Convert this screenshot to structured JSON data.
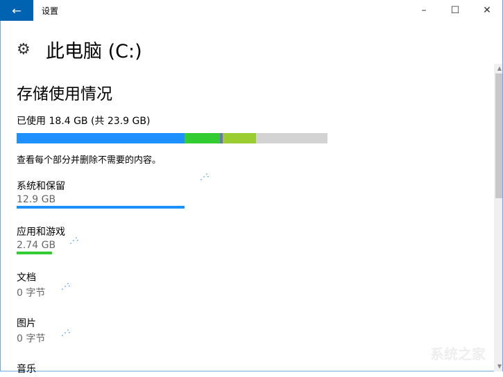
{
  "window": {
    "title": "设置",
    "back_icon": "arrow-left-icon",
    "minimize": "–",
    "maximize": "☐",
    "close": "✕"
  },
  "page": {
    "title": "此电脑 (C:)",
    "icon": "gear-icon"
  },
  "storage": {
    "heading": "存储使用情况",
    "used_text": "已使用 18.4 GB (共 23.9 GB)",
    "hint": "查看每个部分并删除不需要的内容。",
    "segments": [
      {
        "gb": 12.9,
        "color": "#1e90ff"
      },
      {
        "gb": 2.74,
        "color": "#33cc33"
      },
      {
        "gb": 0.2,
        "color": "#7b68c8"
      },
      {
        "gb": 2.56,
        "color": "#9acd32"
      }
    ],
    "total_gb": 23.9
  },
  "categories": [
    {
      "name": "系统和保留",
      "size": "12.9 GB",
      "gb": 12.9,
      "color": "#1e90ff"
    },
    {
      "name": "应用和游戏",
      "size": "2.74 GB",
      "gb": 2.74,
      "color": "#33cc33"
    },
    {
      "name": "文档",
      "size": "0 字节",
      "gb": 0,
      "color": "#1e90ff"
    },
    {
      "name": "图片",
      "size": "0 字节",
      "gb": 0,
      "color": "#1e90ff"
    },
    {
      "name": "音乐",
      "size": "",
      "gb": 0,
      "color": "#1e90ff"
    }
  ],
  "watermark": "系统之家"
}
